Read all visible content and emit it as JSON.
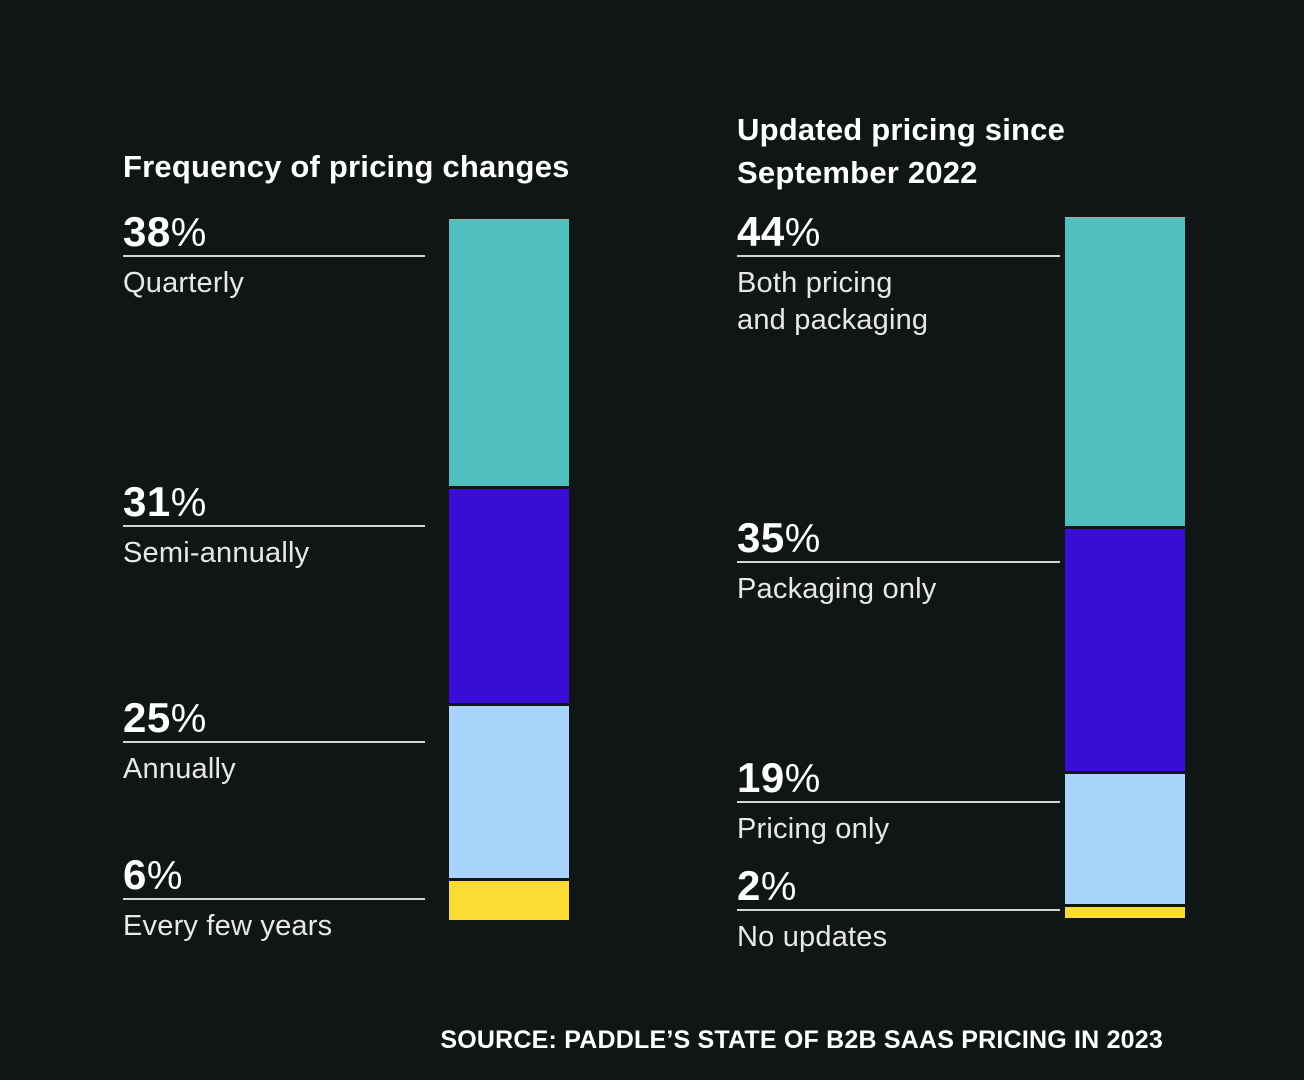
{
  "page": {
    "background": "#101516",
    "source_note": "SOURCE: PADDLE’S STATE OF B2B SAAS PRICING IN 2023"
  },
  "colors": {
    "teal": "#4FBFC0",
    "indigo": "#3A0DD6",
    "light_blue": "#A9D4FB",
    "yellow": "#FADC35",
    "title_text": "#FFFFFF",
    "category_text": "#EAE8E3",
    "rule": "#D6D4D0"
  },
  "chart_data": [
    {
      "type": "bar",
      "variant": "stacked-column",
      "title": "Frequency of pricing changes",
      "unit": "%",
      "total": 100,
      "categories": [
        "Quarterly",
        "Semi-annually",
        "Annually",
        "Every few years"
      ],
      "values": [
        38,
        31,
        25,
        6
      ],
      "value_labels": [
        "38",
        "31",
        "25",
        "6"
      ],
      "segment_colors": [
        "#4FBFC0",
        "#3A0DD6",
        "#A9D4FB",
        "#FADC35"
      ],
      "legend_position": "left-of-bar",
      "grid": false
    },
    {
      "type": "bar",
      "variant": "stacked-column",
      "title": "Updated pricing since\nSeptember 2022",
      "unit": "%",
      "total": 100,
      "categories": [
        "Both pricing\nand packaging",
        "Packaging only",
        "Pricing only",
        "No updates"
      ],
      "values": [
        44,
        35,
        19,
        2
      ],
      "value_labels": [
        "44",
        "35",
        "19",
        "2"
      ],
      "segment_colors": [
        "#4FBFC0",
        "#3A0DD6",
        "#A9D4FB",
        "#FADC35"
      ],
      "legend_position": "left-of-bar",
      "grid": false
    }
  ]
}
